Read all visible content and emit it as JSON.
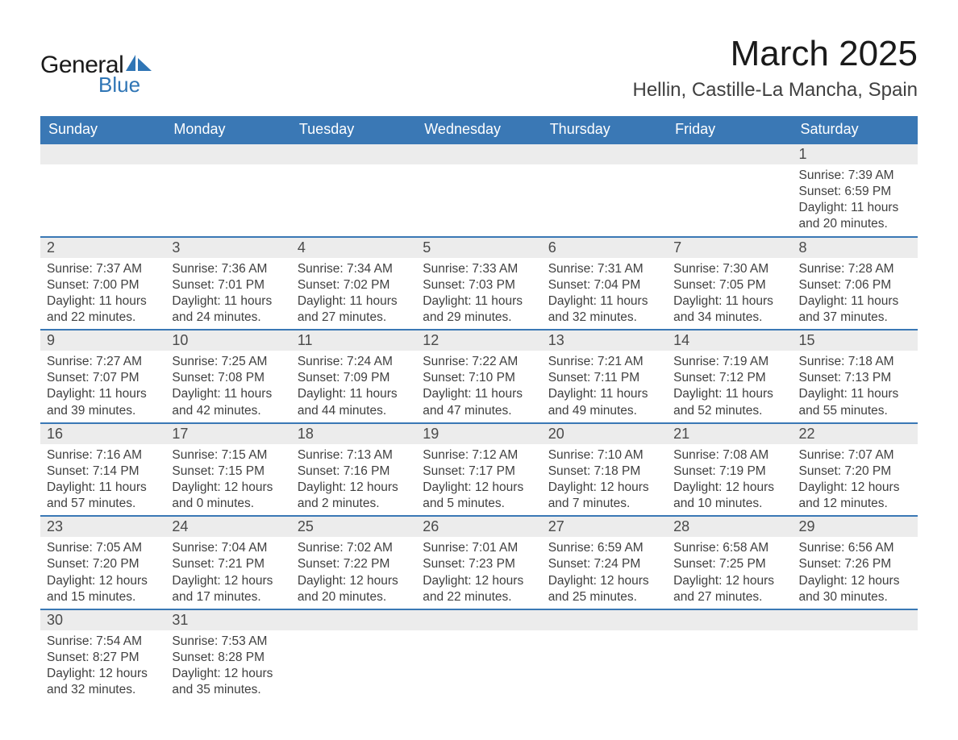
{
  "logo": {
    "general": "General",
    "blue": "Blue",
    "shape_color": "#2f75b5"
  },
  "title": "March 2025",
  "location": "Hellin, Castille-La Mancha, Spain",
  "header_bg": "#3a78b5",
  "header_fg": "#ffffff",
  "daynum_bg": "#ececec",
  "border_color": "#3a78b5",
  "text_color": "#404040",
  "day_names": [
    "Sunday",
    "Monday",
    "Tuesday",
    "Wednesday",
    "Thursday",
    "Friday",
    "Saturday"
  ],
  "weeks": [
    [
      null,
      null,
      null,
      null,
      null,
      null,
      {
        "n": "1",
        "sr": "7:39 AM",
        "ss": "6:59 PM",
        "dl": "11 hours and 20 minutes."
      }
    ],
    [
      {
        "n": "2",
        "sr": "7:37 AM",
        "ss": "7:00 PM",
        "dl": "11 hours and 22 minutes."
      },
      {
        "n": "3",
        "sr": "7:36 AM",
        "ss": "7:01 PM",
        "dl": "11 hours and 24 minutes."
      },
      {
        "n": "4",
        "sr": "7:34 AM",
        "ss": "7:02 PM",
        "dl": "11 hours and 27 minutes."
      },
      {
        "n": "5",
        "sr": "7:33 AM",
        "ss": "7:03 PM",
        "dl": "11 hours and 29 minutes."
      },
      {
        "n": "6",
        "sr": "7:31 AM",
        "ss": "7:04 PM",
        "dl": "11 hours and 32 minutes."
      },
      {
        "n": "7",
        "sr": "7:30 AM",
        "ss": "7:05 PM",
        "dl": "11 hours and 34 minutes."
      },
      {
        "n": "8",
        "sr": "7:28 AM",
        "ss": "7:06 PM",
        "dl": "11 hours and 37 minutes."
      }
    ],
    [
      {
        "n": "9",
        "sr": "7:27 AM",
        "ss": "7:07 PM",
        "dl": "11 hours and 39 minutes."
      },
      {
        "n": "10",
        "sr": "7:25 AM",
        "ss": "7:08 PM",
        "dl": "11 hours and 42 minutes."
      },
      {
        "n": "11",
        "sr": "7:24 AM",
        "ss": "7:09 PM",
        "dl": "11 hours and 44 minutes."
      },
      {
        "n": "12",
        "sr": "7:22 AM",
        "ss": "7:10 PM",
        "dl": "11 hours and 47 minutes."
      },
      {
        "n": "13",
        "sr": "7:21 AM",
        "ss": "7:11 PM",
        "dl": "11 hours and 49 minutes."
      },
      {
        "n": "14",
        "sr": "7:19 AM",
        "ss": "7:12 PM",
        "dl": "11 hours and 52 minutes."
      },
      {
        "n": "15",
        "sr": "7:18 AM",
        "ss": "7:13 PM",
        "dl": "11 hours and 55 minutes."
      }
    ],
    [
      {
        "n": "16",
        "sr": "7:16 AM",
        "ss": "7:14 PM",
        "dl": "11 hours and 57 minutes."
      },
      {
        "n": "17",
        "sr": "7:15 AM",
        "ss": "7:15 PM",
        "dl": "12 hours and 0 minutes."
      },
      {
        "n": "18",
        "sr": "7:13 AM",
        "ss": "7:16 PM",
        "dl": "12 hours and 2 minutes."
      },
      {
        "n": "19",
        "sr": "7:12 AM",
        "ss": "7:17 PM",
        "dl": "12 hours and 5 minutes."
      },
      {
        "n": "20",
        "sr": "7:10 AM",
        "ss": "7:18 PM",
        "dl": "12 hours and 7 minutes."
      },
      {
        "n": "21",
        "sr": "7:08 AM",
        "ss": "7:19 PM",
        "dl": "12 hours and 10 minutes."
      },
      {
        "n": "22",
        "sr": "7:07 AM",
        "ss": "7:20 PM",
        "dl": "12 hours and 12 minutes."
      }
    ],
    [
      {
        "n": "23",
        "sr": "7:05 AM",
        "ss": "7:20 PM",
        "dl": "12 hours and 15 minutes."
      },
      {
        "n": "24",
        "sr": "7:04 AM",
        "ss": "7:21 PM",
        "dl": "12 hours and 17 minutes."
      },
      {
        "n": "25",
        "sr": "7:02 AM",
        "ss": "7:22 PM",
        "dl": "12 hours and 20 minutes."
      },
      {
        "n": "26",
        "sr": "7:01 AM",
        "ss": "7:23 PM",
        "dl": "12 hours and 22 minutes."
      },
      {
        "n": "27",
        "sr": "6:59 AM",
        "ss": "7:24 PM",
        "dl": "12 hours and 25 minutes."
      },
      {
        "n": "28",
        "sr": "6:58 AM",
        "ss": "7:25 PM",
        "dl": "12 hours and 27 minutes."
      },
      {
        "n": "29",
        "sr": "6:56 AM",
        "ss": "7:26 PM",
        "dl": "12 hours and 30 minutes."
      }
    ],
    [
      {
        "n": "30",
        "sr": "7:54 AM",
        "ss": "8:27 PM",
        "dl": "12 hours and 32 minutes."
      },
      {
        "n": "31",
        "sr": "7:53 AM",
        "ss": "8:28 PM",
        "dl": "12 hours and 35 minutes."
      },
      null,
      null,
      null,
      null,
      null
    ]
  ],
  "labels": {
    "sunrise": "Sunrise: ",
    "sunset": "Sunset: ",
    "daylight": "Daylight: "
  }
}
